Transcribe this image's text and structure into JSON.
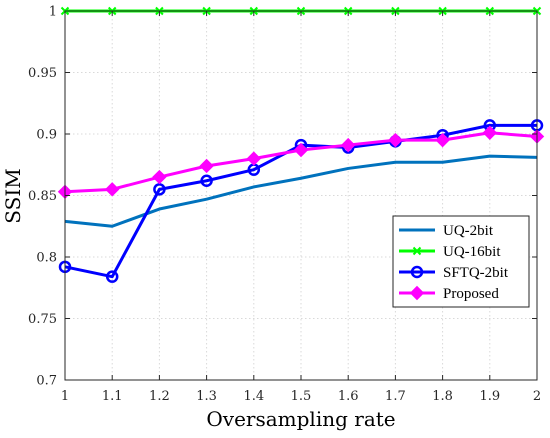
{
  "chart_data": {
    "type": "line",
    "xlabel": "Oversampling rate",
    "ylabel": "SSIM",
    "xlim": [
      1,
      2
    ],
    "ylim": [
      0.7,
      1
    ],
    "x_ticks": [
      "1",
      "1.1",
      "1.2",
      "1.3",
      "1.4",
      "1.5",
      "1.6",
      "1.7",
      "1.8",
      "1.9",
      "2"
    ],
    "y_ticks": [
      "0.7",
      "0.75",
      "0.8",
      "0.85",
      "0.9",
      "0.95",
      "1"
    ],
    "grid": true,
    "legend_position": "bottom-right",
    "x": [
      1,
      1.1,
      1.2,
      1.3,
      1.4,
      1.5,
      1.6,
      1.7,
      1.8,
      1.9,
      2
    ],
    "series": [
      {
        "name": "UQ-2bit",
        "color": "#0072bd",
        "marker": "none",
        "values": [
          0.829,
          0.825,
          0.839,
          0.847,
          0.857,
          0.864,
          0.872,
          0.877,
          0.877,
          0.882,
          0.881
        ]
      },
      {
        "name": "UQ-16bit",
        "color": "#00ff00",
        "marker": "x",
        "values": [
          1,
          1,
          1,
          1,
          1,
          1,
          1,
          1,
          1,
          1,
          1
        ]
      },
      {
        "name": "SFTQ-2bit",
        "color": "#0000ff",
        "marker": "circle",
        "values": [
          0.792,
          0.784,
          0.855,
          0.862,
          0.871,
          0.891,
          0.889,
          0.894,
          0.899,
          0.907,
          0.907
        ]
      },
      {
        "name": "Proposed",
        "color": "#ff00ff",
        "marker": "diamond",
        "values": [
          0.853,
          0.855,
          0.865,
          0.874,
          0.88,
          0.887,
          0.891,
          0.895,
          0.895,
          0.901,
          0.898
        ]
      }
    ]
  }
}
